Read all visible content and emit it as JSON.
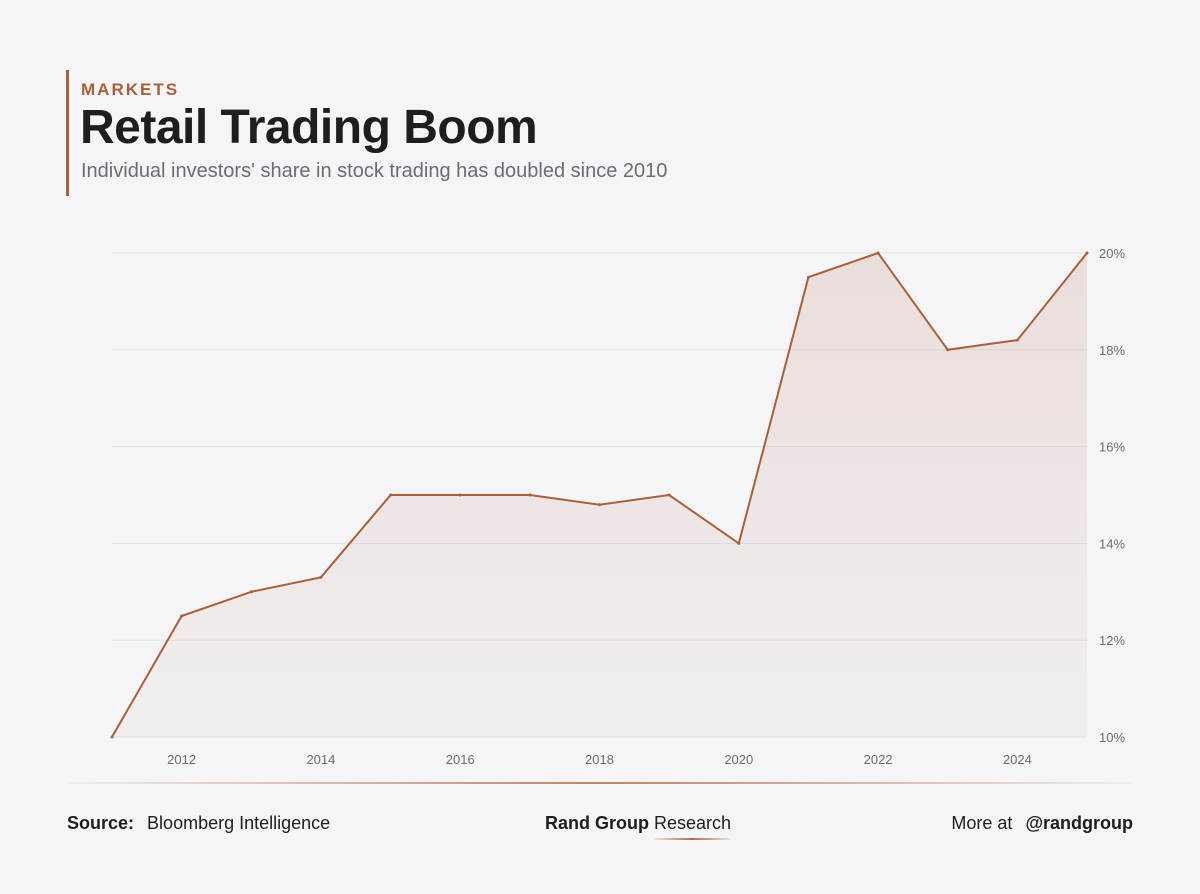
{
  "header": {
    "kicker": "MARKETS",
    "title": "Retail Trading Boom",
    "subtitle": "Individual investors' share in stock trading has doubled since 2010"
  },
  "chart_data": {
    "type": "area",
    "x": [
      2011,
      2012,
      2013,
      2014,
      2015,
      2016,
      2017,
      2018,
      2019,
      2020,
      2021,
      2022,
      2023,
      2024,
      2025
    ],
    "values": [
      10,
      12.5,
      13,
      13.3,
      15,
      15,
      15,
      14.8,
      15,
      14,
      19.5,
      20,
      18,
      18.2,
      20
    ],
    "xticks": [
      "2012",
      "2014",
      "2016",
      "2018",
      "2020",
      "2022",
      "2024"
    ],
    "xtick_values": [
      2012,
      2014,
      2016,
      2018,
      2020,
      2022,
      2024
    ],
    "yticks": [
      "10%",
      "12%",
      "14%",
      "16%",
      "18%",
      "20%"
    ],
    "ytick_values": [
      10,
      12,
      14,
      16,
      18,
      20
    ],
    "ylim": [
      10,
      20
    ],
    "xlim": [
      2011,
      2025
    ],
    "yaxis_side": "right",
    "grid": true,
    "line_color": "#a8603a"
  },
  "footer": {
    "source_label": "Source:",
    "source_value": "Bloomberg Intelligence",
    "brand_bold": "Rand Group",
    "brand_regular": "Research",
    "more_label": "More at",
    "handle": "@randgroup"
  }
}
